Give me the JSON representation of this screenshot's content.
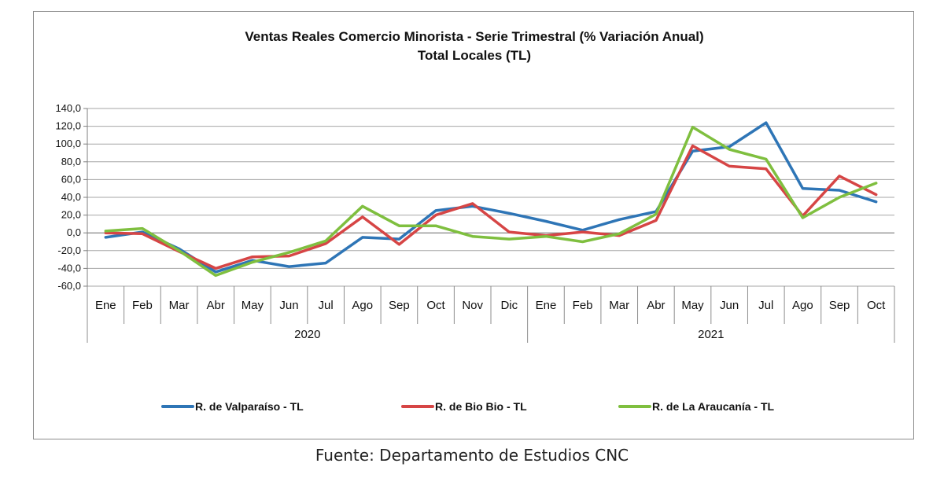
{
  "source": "Fuente: Departamento de Estudios CNC",
  "chart_data": {
    "type": "line",
    "title": "Ventas Reales Comercio Minorista - Serie Trimestral (% Variación Anual)",
    "subtitle": "Total Locales (TL)",
    "xlabel": "",
    "ylabel": "",
    "ylim": [
      -60,
      140
    ],
    "yticks": [
      "140,0",
      "120,0",
      "100,0",
      "80,0",
      "60,0",
      "40,0",
      "20,0",
      "0,0",
      "-20,0",
      "-40,0",
      "-60,0"
    ],
    "ytick_values": [
      140,
      120,
      100,
      80,
      60,
      40,
      20,
      0,
      -20,
      -40,
      -60
    ],
    "categories": [
      "Ene",
      "Feb",
      "Mar",
      "Abr",
      "May",
      "Jun",
      "Jul",
      "Ago",
      "Sep",
      "Oct",
      "Nov",
      "Dic",
      "Ene",
      "Feb",
      "Mar",
      "Abr",
      "May",
      "Jun",
      "Jul",
      "Ago",
      "Sep",
      "Oct"
    ],
    "groups": [
      {
        "label": "2020",
        "count": 12
      },
      {
        "label": "2021",
        "count": 10
      }
    ],
    "grid": "horizontal",
    "legend_position": "bottom",
    "series": [
      {
        "name": "R. de Valparaíso - TL",
        "color": "#2e75b6",
        "values": [
          -5,
          1,
          -18,
          -44,
          -31,
          -38,
          -34,
          -5,
          -7,
          25,
          30,
          22,
          13,
          3,
          15,
          24,
          92,
          97,
          124,
          50,
          48,
          35
        ]
      },
      {
        "name": "R. de Bio Bio - TL",
        "color": "#d64545",
        "values": [
          0,
          -1,
          -21,
          -40,
          -27,
          -26,
          -12,
          18,
          -13,
          20,
          33,
          1,
          -3,
          1,
          -3,
          14,
          98,
          75,
          72,
          19,
          64,
          43
        ]
      },
      {
        "name": "R. de La Araucanía - TL",
        "color": "#7fbf3f",
        "values": [
          2,
          5,
          -20,
          -48,
          -33,
          -22,
          -9,
          30,
          8,
          8,
          -4,
          -7,
          -4,
          -10,
          -1,
          21,
          119,
          94,
          83,
          17,
          40,
          56
        ]
      }
    ]
  }
}
